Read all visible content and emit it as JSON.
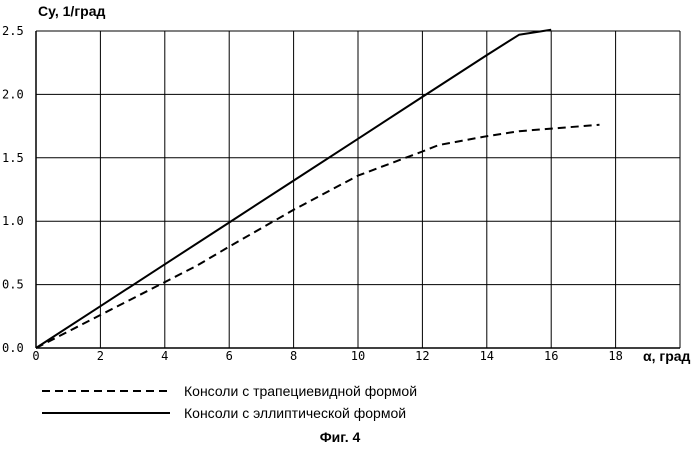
{
  "chart_data": {
    "type": "line",
    "ylabel": "Cy, 1/град",
    "xlabel": "α, град",
    "xlim": [
      0,
      20
    ],
    "ylim": [
      0,
      2.5
    ],
    "x_ticks": [
      "0",
      "2",
      "4",
      "6",
      "8",
      "10",
      "12",
      "14",
      "16",
      "18"
    ],
    "x_tick_values": [
      0,
      2,
      4,
      6,
      8,
      10,
      12,
      14,
      16,
      18
    ],
    "y_ticks": [
      "0.0",
      "0.5",
      "1.0",
      "1.5",
      "2.0",
      "2.5"
    ],
    "y_tick_values": [
      0,
      0.5,
      1.0,
      1.5,
      2.0,
      2.5
    ],
    "grid": true,
    "legend_position": "bottom-left",
    "series": [
      {
        "name": "Консоли с трапециевидной формой",
        "style": "dashed",
        "color": "#000000",
        "x": [
          0,
          2,
          4,
          5,
          6,
          8,
          10,
          12,
          12.5,
          14,
          15,
          16,
          17.5
        ],
        "y": [
          0,
          0.26,
          0.52,
          0.65,
          0.8,
          1.09,
          1.36,
          1.55,
          1.6,
          1.67,
          1.71,
          1.73,
          1.76
        ]
      },
      {
        "name": "Консоли с эллиптической формой",
        "style": "solid",
        "color": "#000000",
        "x": [
          0,
          2,
          4,
          6,
          8,
          10,
          12,
          14,
          15,
          16
        ],
        "y": [
          0,
          0.33,
          0.66,
          0.99,
          1.32,
          1.65,
          1.98,
          2.31,
          2.47,
          2.51
        ]
      }
    ],
    "caption": "Фиг. 4"
  }
}
